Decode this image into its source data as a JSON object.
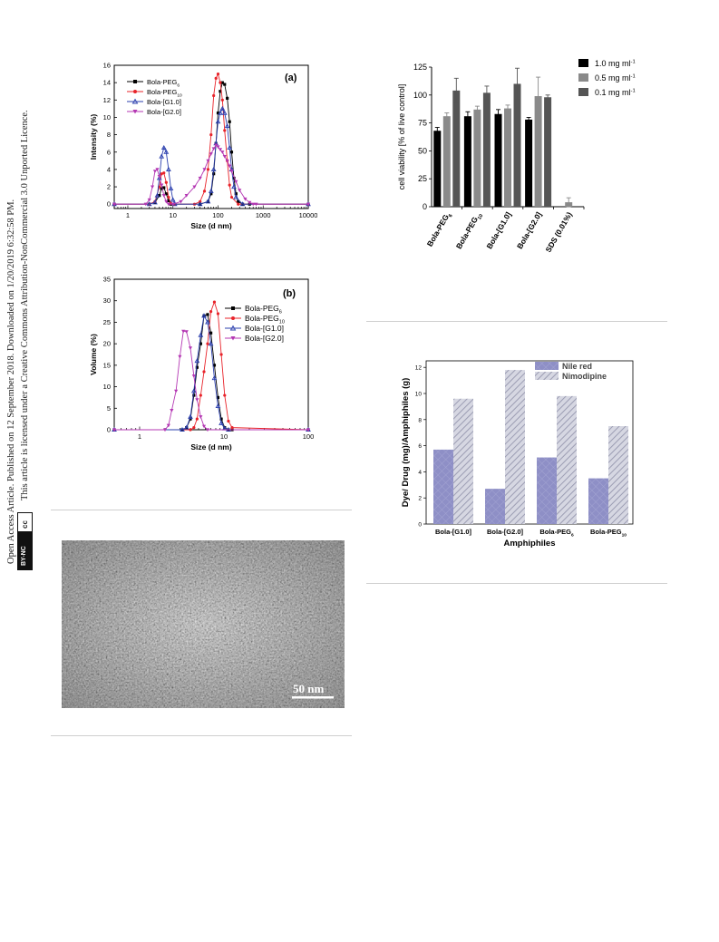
{
  "side_notice": {
    "line1": "Open Access Article. Published on 12 September 2018. Downloaded on 1/20/2019 6:32:58 PM.",
    "line2": "This article is licensed under a Creative Commons Attribution-NonCommercial 3.0 Unported Licence.",
    "badge": "BY-NC",
    "cc": "cc"
  },
  "chart_data": [
    {
      "type": "line",
      "panel_label": "(a)",
      "xlabel": "Size (d nm)",
      "ylabel": "Intensity (%)",
      "xscale": "log",
      "xlim": [
        0.5,
        10000
      ],
      "ylim": [
        -0.5,
        16
      ],
      "xticks": [
        "1",
        "10",
        "100",
        "1000",
        "10000"
      ],
      "yticks": [
        "0",
        "2",
        "4",
        "6",
        "8",
        "10",
        "12",
        "14",
        "16"
      ],
      "legend_position": "top-left",
      "series": [
        {
          "name": "Bola-PEG",
          "sub": "6",
          "color": "#000000",
          "marker": "square",
          "x": [
            0.5,
            3,
            4,
            5,
            5.6,
            6.3,
            7.1,
            8,
            9,
            11,
            40,
            60,
            70,
            80,
            90,
            100,
            112,
            125,
            140,
            160,
            180,
            200,
            225,
            250,
            280,
            350,
            500,
            10000
          ],
          "y": [
            0,
            0,
            0.2,
            1,
            1.8,
            1.9,
            1.2,
            0.4,
            0,
            0,
            0,
            0.3,
            1.2,
            3.5,
            7,
            10.5,
            13,
            14,
            13.8,
            12.2,
            9.5,
            6,
            3,
            1.2,
            0.3,
            0,
            0,
            0
          ]
        },
        {
          "name": "Bola-PEG",
          "sub": "10",
          "color": "#e8232a",
          "marker": "circle",
          "x": [
            0.5,
            3,
            4,
            5,
            5.6,
            6.3,
            7.1,
            8,
            9,
            11,
            30,
            40,
            50,
            60,
            70,
            80,
            90,
            100,
            112,
            125,
            140,
            160,
            180,
            200,
            280,
            10000
          ],
          "y": [
            0,
            0,
            0.3,
            2,
            3.5,
            3.6,
            2.5,
            0.8,
            0.1,
            0,
            0,
            0.3,
            1.5,
            4,
            8,
            12.5,
            14.5,
            15,
            14,
            12,
            8.5,
            5,
            2.2,
            0.8,
            0,
            0
          ]
        },
        {
          "name": "Bola-[G1.0]",
          "sub": "",
          "color": "#2b3fae",
          "marker": "triangle-up",
          "x": [
            0.5,
            3,
            4,
            4.5,
            5,
            5.6,
            6.3,
            7.1,
            8,
            9,
            10,
            11,
            40,
            60,
            70,
            80,
            90,
            100,
            112,
            125,
            140,
            160,
            180,
            200,
            225,
            250,
            350,
            10000
          ],
          "y": [
            0,
            0,
            0.2,
            1,
            3,
            5.5,
            6.5,
            6,
            4,
            1.8,
            0.5,
            0,
            0,
            0.3,
            1.5,
            4,
            7,
            9.5,
            10.5,
            11,
            10.5,
            9,
            6.5,
            4,
            2,
            0.8,
            0,
            0
          ]
        },
        {
          "name": "Bola-[G2.0]",
          "sub": "",
          "color": "#b437b3",
          "marker": "triangle-down",
          "x": [
            0.5,
            2.5,
            3,
            3.5,
            4,
            4.5,
            5,
            5.6,
            6.3,
            7.1,
            8,
            10,
            15,
            20,
            30,
            40,
            50,
            60,
            70,
            80,
            90,
            100,
            112,
            125,
            140,
            160,
            180,
            200,
            250,
            300,
            400,
            500,
            600,
            700,
            10000
          ],
          "y": [
            0,
            0,
            0.5,
            2,
            3.8,
            4,
            3.2,
            2.2,
            1,
            0.3,
            0,
            0,
            0.3,
            1,
            2,
            3,
            4,
            5,
            5.8,
            6.4,
            6.8,
            6.6,
            6.3,
            6,
            5.5,
            5,
            4.4,
            3.8,
            2.6,
            1.6,
            0.6,
            0.2,
            0,
            0,
            0
          ]
        }
      ]
    },
    {
      "type": "line",
      "panel_label": "(b)",
      "xlabel": "Size (d nm)",
      "ylabel": "Volume (%)",
      "xscale": "log",
      "xlim": [
        0.5,
        100
      ],
      "ylim": [
        0,
        35
      ],
      "xticks": [
        "1",
        "10",
        "100"
      ],
      "yticks": [
        "0",
        "5",
        "10",
        "15",
        "20",
        "25",
        "30",
        "35"
      ],
      "legend_position": "top-right",
      "series": [
        {
          "name": "Bola-PEG",
          "sub": "6",
          "color": "#000000",
          "marker": "square",
          "x": [
            0.5,
            3.2,
            3.6,
            4.0,
            4.4,
            4.8,
            5.3,
            5.8,
            6.4,
            7.0,
            7.7,
            8.5,
            9.3,
            10.2,
            11.3,
            12.5,
            100
          ],
          "y": [
            0,
            0,
            0.5,
            2.5,
            8,
            14.5,
            20,
            26.5,
            26.8,
            22.5,
            15,
            7.5,
            2.5,
            0.5,
            0,
            0,
            0
          ]
        },
        {
          "name": "Bola-PEG",
          "sub": "10",
          "color": "#e8232a",
          "marker": "circle",
          "x": [
            0.5,
            4.0,
            4.4,
            4.8,
            5.3,
            5.8,
            6.4,
            7.0,
            7.7,
            8.5,
            9.3,
            10.2,
            11.3,
            12.5,
            100
          ],
          "y": [
            0,
            0,
            0.5,
            2.5,
            8,
            13.5,
            20,
            27.5,
            29.7,
            27,
            17.5,
            8,
            2,
            0.5,
            0
          ]
        },
        {
          "name": "Bola-[G1.0]",
          "sub": "",
          "color": "#2b3fae",
          "marker": "triangle-up",
          "x": [
            0.5,
            3.2,
            3.6,
            4.0,
            4.4,
            4.8,
            5.3,
            5.8,
            6.4,
            7.0,
            7.7,
            8.5,
            9.3,
            10.2,
            11.3,
            100
          ],
          "y": [
            0,
            0,
            0.5,
            3,
            9,
            16,
            22,
            26.5,
            25,
            20,
            12,
            5.5,
            1.5,
            0.3,
            0,
            0
          ]
        },
        {
          "name": "Bola-[G2.0]",
          "sub": "",
          "color": "#b437b3",
          "marker": "triangle-down",
          "x": [
            0.5,
            2.0,
            2.2,
            2.4,
            2.7,
            3.0,
            3.3,
            3.6,
            4.0,
            4.4,
            4.8,
            5.3,
            5.8,
            6.4,
            100
          ],
          "y": [
            0,
            0,
            1,
            4.5,
            9,
            17,
            22.9,
            22.8,
            19,
            12.5,
            7,
            3,
            0.8,
            0,
            0
          ]
        }
      ]
    },
    {
      "type": "bar",
      "ylabel": "cell viability [% of live control]",
      "ylim": [
        0,
        125
      ],
      "yticks": [
        "0",
        "25",
        "50",
        "75",
        "100",
        "125"
      ],
      "categories": [
        "Bola-PEG",
        "Bola-PEG",
        "Bola-[G1.0]",
        "Bola-[G2.0]",
        "SDS (0.01%)"
      ],
      "category_subs": [
        "6",
        "10",
        "",
        "",
        ""
      ],
      "legend_position": "top-right",
      "series": [
        {
          "name": "1.0 mg ml",
          "sup": "-1",
          "color": "#000000",
          "values": [
            68,
            81,
            83,
            78,
            null
          ],
          "errors": [
            3,
            4,
            4,
            2,
            null
          ]
        },
        {
          "name": "0.5 mg ml",
          "sup": "-1",
          "color": "#8a8a8a",
          "values": [
            81,
            87,
            88,
            99,
            4
          ],
          "errors": [
            3,
            3,
            3,
            17,
            4
          ]
        },
        {
          "name": "0.1 mg ml",
          "sup": "-1",
          "color": "#555555",
          "values": [
            104,
            102,
            110,
            98,
            null
          ],
          "errors": [
            11,
            6,
            14,
            2,
            null
          ]
        }
      ]
    },
    {
      "type": "bar",
      "xlabel": "Amphiphiles",
      "ylabel": "Dye/ Drug (mg)/Amphiphiles (g)",
      "ylim": [
        0,
        12.5
      ],
      "yticks": [
        "0",
        "2",
        "4",
        "6",
        "8",
        "10",
        "12"
      ],
      "categories": [
        "Bola-[G1.0]",
        "Bola-[G2.0]",
        "Bola-PEG",
        "Bola-PEG"
      ],
      "category_subs": [
        "",
        "",
        "6",
        "10"
      ],
      "legend_position": "top-right",
      "series": [
        {
          "name": "Nile red",
          "color": "#8e8fc6",
          "values": [
            5.7,
            2.7,
            5.1,
            3.5
          ]
        },
        {
          "name": "Nimodipine",
          "color": "#c9cad8",
          "values": [
            9.6,
            11.8,
            9.8,
            7.5
          ]
        }
      ]
    }
  ],
  "tem_image": {
    "scale_bar_label": "50 nm"
  }
}
